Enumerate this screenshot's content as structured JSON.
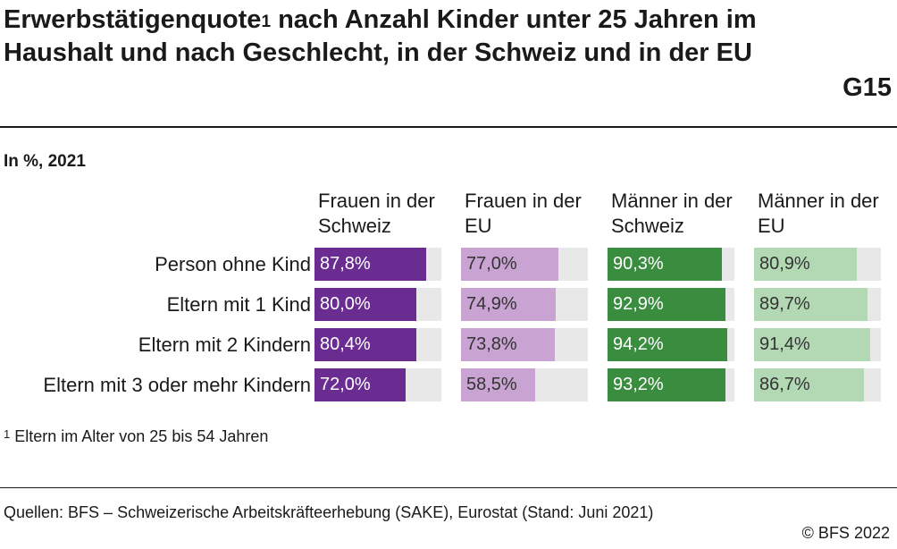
{
  "title": "Erwerbstätigenquote",
  "title_sup": "1",
  "title_rest": " nach Anzahl Kinder unter 25 Jahren im Haushalt und nach Geschlecht, in der Schweiz und in der EU",
  "code": "G15",
  "subtitle": "In %, 2021",
  "footnote_sup": "1",
  "footnote": " Eltern im Alter von 25 bis 54 Jahren",
  "source": "Quellen: BFS – Schweizerische Arbeitskräfteerhebung (SAKE), Eurostat (Stand: Juni 2021)",
  "copyright": "© BFS 2022",
  "chart_data": {
    "type": "bar",
    "orientation": "horizontal",
    "layout": "small-multiples",
    "xlim": [
      0,
      100
    ],
    "categories": [
      "Person ohne Kind",
      "Eltern mit 1 Kind",
      "Eltern mit 2 Kindern",
      "Eltern mit 3 oder mehr Kindern"
    ],
    "series": [
      {
        "name": "Frauen in der Schweiz",
        "color": "#6a2c91",
        "text_color": "light",
        "values": [
          87.8,
          80.0,
          80.4,
          72.0
        ],
        "labels": [
          "87,8%",
          "80,0%",
          "80,4%",
          "72,0%"
        ]
      },
      {
        "name": "Frauen in der EU",
        "color": "#c9a4d3",
        "text_color": "dark",
        "values": [
          77.0,
          74.9,
          73.8,
          58.5
        ],
        "labels": [
          "77,0%",
          "74,9%",
          "73,8%",
          "58,5%"
        ]
      },
      {
        "name": "Männer in der Schweiz",
        "color": "#3a8c3f",
        "text_color": "light",
        "values": [
          90.3,
          92.9,
          94.2,
          93.2
        ],
        "labels": [
          "90,3%",
          "92,9%",
          "94,2%",
          "93,2%"
        ]
      },
      {
        "name": "Männer in der EU",
        "color": "#b2d9b4",
        "text_color": "dark",
        "values": [
          80.9,
          89.7,
          91.4,
          86.7
        ],
        "labels": [
          "80,9%",
          "89,7%",
          "91,4%",
          "86,7%"
        ]
      }
    ],
    "track_color": "#e8e8e8"
  }
}
